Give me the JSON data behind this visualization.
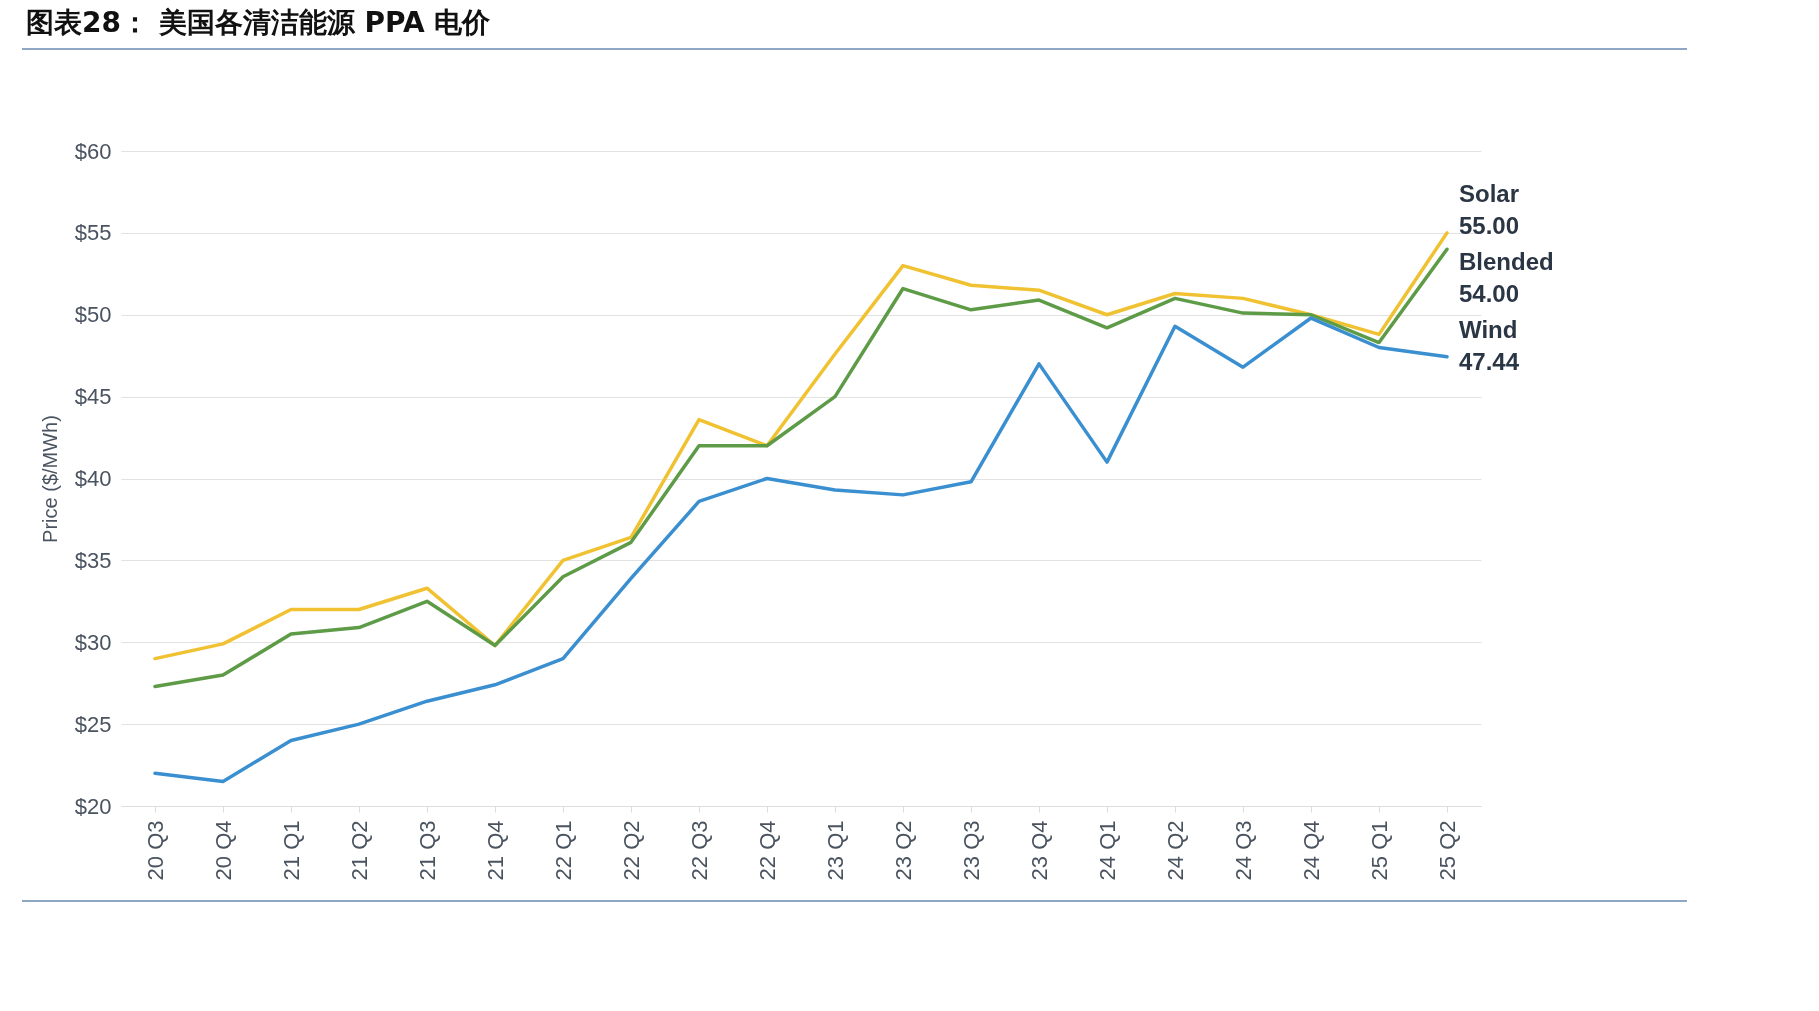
{
  "chart_data": {
    "type": "line",
    "title": "图表28： 美国各清洁能源 PPA 电价",
    "ylabel": "Price ($/MWh)",
    "categories": [
      "20 Q3",
      "20 Q4",
      "21 Q1",
      "21 Q2",
      "21 Q3",
      "21 Q4",
      "22 Q1",
      "22 Q2",
      "22 Q3",
      "22 Q4",
      "23 Q1",
      "23 Q2",
      "23 Q3",
      "23 Q4",
      "24 Q1",
      "24 Q2",
      "24 Q3",
      "24 Q4",
      "25 Q1",
      "25 Q2"
    ],
    "series": [
      {
        "name": "Solar",
        "color": "#f0c232",
        "values": [
          29,
          29.9,
          32,
          32,
          33.3,
          29.8,
          35,
          36.4,
          43.6,
          42,
          47.6,
          53,
          51.8,
          51.5,
          50,
          51.3,
          51,
          50,
          48.8,
          55
        ],
        "value_labels": [
          null,
          null,
          null,
          null,
          null,
          null,
          null,
          null,
          null,
          null,
          null,
          null,
          null,
          null,
          null,
          null,
          null,
          null,
          null,
          "55.00"
        ]
      },
      {
        "name": "Blended",
        "color": "#5e9b47",
        "values": [
          27.3,
          28,
          30.5,
          30.9,
          32.5,
          29.8,
          34,
          36.1,
          42,
          42,
          45,
          51.6,
          50.3,
          50.9,
          49.2,
          51,
          50.1,
          50,
          48.3,
          54
        ],
        "value_labels": [
          null,
          null,
          null,
          null,
          null,
          null,
          null,
          null,
          null,
          null,
          null,
          null,
          null,
          null,
          null,
          null,
          null,
          null,
          null,
          "54.00"
        ]
      },
      {
        "name": "Wind",
        "color": "#3a8fd0",
        "values": [
          22,
          21.5,
          24,
          25,
          26.4,
          27.4,
          29,
          33.9,
          38.6,
          40,
          39.3,
          39,
          39.8,
          47,
          41,
          49.3,
          46.8,
          49.8,
          48,
          47.44
        ],
        "value_labels": [
          null,
          null,
          null,
          null,
          null,
          null,
          null,
          null,
          null,
          null,
          null,
          null,
          null,
          null,
          null,
          null,
          null,
          null,
          null,
          "47.44"
        ]
      }
    ],
    "ylim": [
      20,
      60
    ],
    "yticks": [
      {
        "value": 20,
        "label": "$20"
      },
      {
        "value": 25,
        "label": "$25"
      },
      {
        "value": 30,
        "label": "$30"
      },
      {
        "value": 35,
        "label": "$35"
      },
      {
        "value": 40,
        "label": "$40"
      },
      {
        "value": 45,
        "label": "$45"
      },
      {
        "value": 50,
        "label": "$50"
      },
      {
        "value": 55,
        "label": "$55"
      },
      {
        "value": 60,
        "label": "$60"
      }
    ],
    "grid": "y",
    "legend": false,
    "marker": "none",
    "line_style": "solid"
  }
}
